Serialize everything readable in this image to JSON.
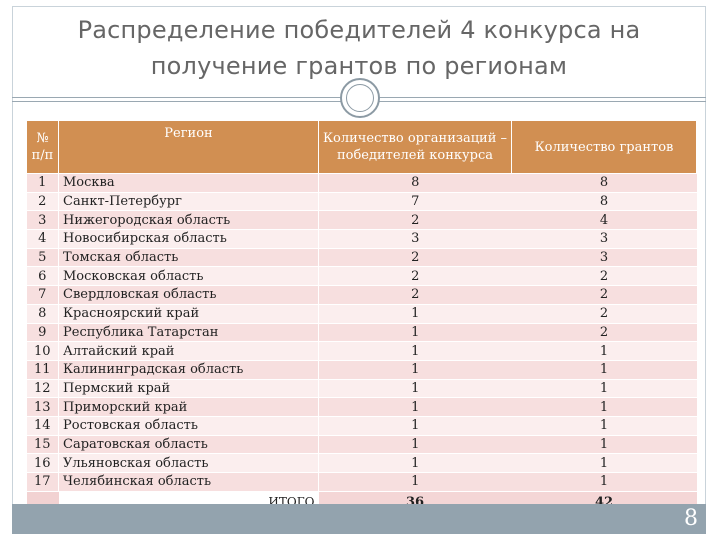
{
  "slide": {
    "title_line1": "Распределение победителей 4 конкурса на",
    "title_line2": "получение грантов по регионам",
    "page_number": "8"
  },
  "table": {
    "headers": {
      "num": "№ п/п",
      "region": "Регион",
      "orgs": "Количество организаций – победителей конкурса",
      "grants": "Количество грантов"
    },
    "rows": [
      {
        "num": "1",
        "region": "Москва",
        "orgs": "8",
        "grants": "8"
      },
      {
        "num": "2",
        "region": "Санкт-Петербург",
        "orgs": "7",
        "grants": "8"
      },
      {
        "num": "3",
        "region": "Нижегородская область",
        "orgs": "2",
        "grants": "4"
      },
      {
        "num": "4",
        "region": "Новосибирская область",
        "orgs": "3",
        "grants": "3"
      },
      {
        "num": "5",
        "region": "Томская область",
        "orgs": "2",
        "grants": "3"
      },
      {
        "num": "6",
        "region": "Московская область",
        "orgs": "2",
        "grants": "2"
      },
      {
        "num": "7",
        "region": "Свердловская область",
        "orgs": "2",
        "grants": "2"
      },
      {
        "num": "8",
        "region": "Красноярский край",
        "orgs": "1",
        "grants": "2"
      },
      {
        "num": "9",
        "region": "Республика Татарстан",
        "orgs": "1",
        "grants": "2"
      },
      {
        "num": "10",
        "region": "Алтайский край",
        "orgs": "1",
        "grants": "1"
      },
      {
        "num": "11",
        "region": "Калининградская область",
        "orgs": "1",
        "grants": "1"
      },
      {
        "num": "12",
        "region": "Пермский край",
        "orgs": "1",
        "grants": "1"
      },
      {
        "num": "13",
        "region": "Приморский край",
        "orgs": "1",
        "grants": "1"
      },
      {
        "num": "14",
        "region": "Ростовская область",
        "orgs": "1",
        "grants": "1"
      },
      {
        "num": "15",
        "region": "Саратовская область",
        "orgs": "1",
        "grants": "1"
      },
      {
        "num": "16",
        "region": "Ульяновская область",
        "orgs": "1",
        "grants": "1"
      },
      {
        "num": "17",
        "region": "Челябинская область",
        "orgs": "1",
        "grants": "1"
      }
    ],
    "total": {
      "label": "ИТОГО",
      "orgs": "36",
      "grants": "42"
    }
  },
  "colors": {
    "header_bg": "#d18f52",
    "row_odd": "#f7dfdf",
    "row_even": "#fbeeee",
    "footer_bar": "#93a3ae"
  }
}
